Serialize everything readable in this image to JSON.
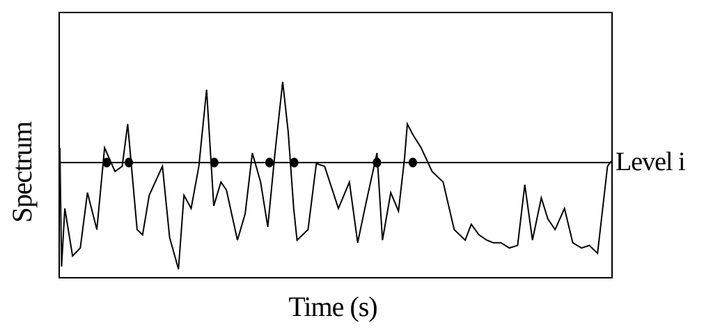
{
  "chart_data": {
    "type": "line",
    "xlabel": "Time (s)",
    "ylabel": "Spectrum",
    "xlim": [
      0,
      100
    ],
    "ylim": [
      0,
      100
    ],
    "grid": false,
    "threshold": {
      "label": "Level i",
      "value": 43.4
    },
    "series": [
      {
        "x": [
          0,
          0.3,
          0.9,
          2.3,
          3.7,
          5.0,
          6.7,
          8.1,
          10.0,
          11.3,
          12.3,
          14.0,
          15.0,
          16.2,
          18.6,
          19.9,
          21.5,
          22.5,
          23.8,
          25.2,
          26.6,
          27.9,
          29.2,
          30.2,
          32.2,
          33.6,
          34.9,
          36.4,
          37.7,
          39.0,
          40.4,
          41.4,
          42.4,
          43.0,
          45.0,
          46.5,
          48.0,
          50.5,
          52.5,
          54.0,
          55.5,
          57.5,
          58.5,
          60.0,
          61.4,
          62.5,
          63.0,
          64.0,
          65.5,
          67.5,
          69.5,
          71.5,
          73.5,
          74.6,
          76.0,
          77.4,
          78.6,
          80.0,
          81.5,
          83.0,
          84.3,
          85.7,
          87.3,
          88.5,
          89.8,
          91.5,
          93.0,
          94.6,
          96.0,
          97.5,
          99.3,
          100.0
        ],
        "y": [
          49,
          4,
          26,
          8,
          11,
          32,
          18,
          49,
          40,
          42,
          58,
          18,
          16,
          31,
          42,
          15,
          3,
          31,
          26,
          42,
          71,
          27,
          36,
          33,
          14,
          24,
          47,
          36,
          19,
          47,
          74,
          55,
          26,
          14,
          18,
          43,
          42,
          26,
          36,
          13,
          28,
          47,
          14,
          32,
          25,
          45,
          58,
          54,
          49,
          40,
          36,
          18,
          14,
          20,
          16,
          14,
          13,
          13,
          11,
          12,
          35,
          14,
          30,
          22,
          18,
          26,
          13,
          11,
          12,
          9,
          42,
          44
        ]
      }
    ],
    "markers": {
      "x": [
        8.5,
        12.5,
        28.0,
        38.0,
        42.5,
        57.5,
        64.0
      ],
      "y": [
        43.4,
        43.4,
        43.4,
        43.4,
        43.4,
        43.4,
        43.4
      ]
    }
  }
}
